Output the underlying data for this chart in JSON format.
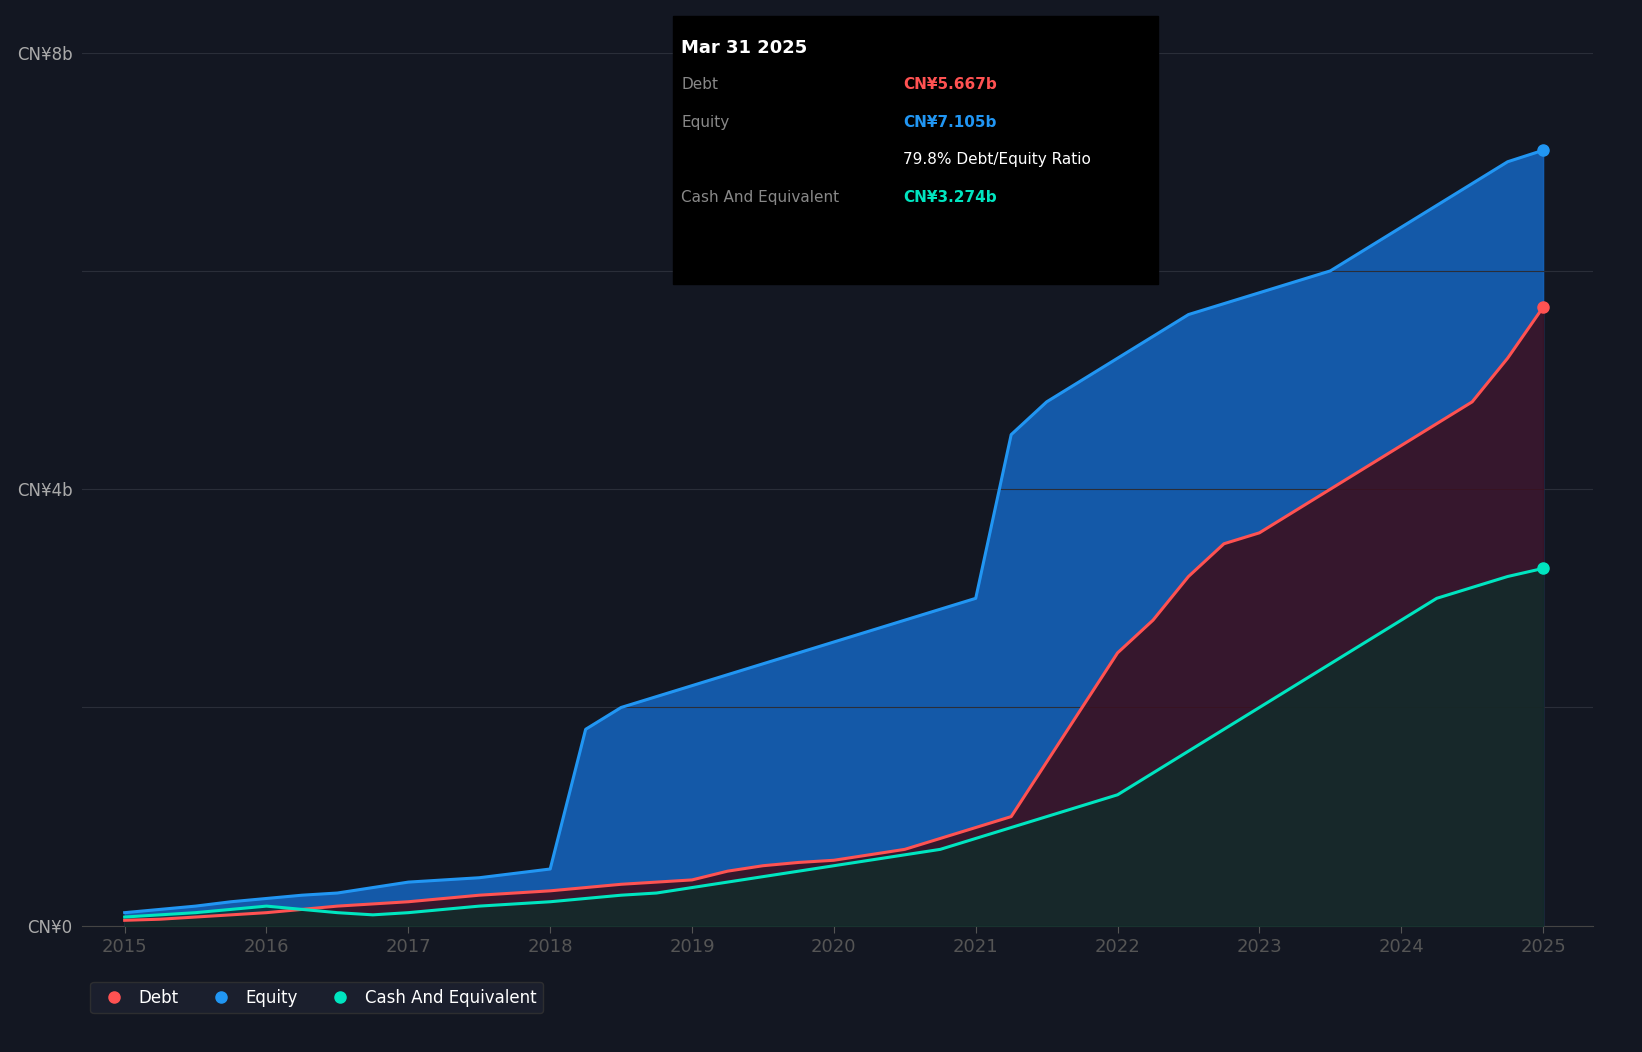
{
  "background_color": "#131722",
  "plot_bg_color": "#131722",
  "grid_color": "#2a2e39",
  "line_equity_color": "#2196F3",
  "line_debt_color": "#FF5252",
  "line_cash_color": "#00E5C0",
  "fill_equity_color": "#1565C0",
  "fill_debt_color": "#3a1020",
  "fill_cash_color": "#0d2e2a",
  "ytick_labels": [
    "CN¥0",
    "",
    "CN¥4b",
    "",
    "CN¥8b"
  ],
  "xlabel_years": [
    "2015",
    "2016",
    "2017",
    "2018",
    "2019",
    "2020",
    "2021",
    "2022",
    "2023",
    "2024",
    "2025"
  ],
  "tooltip": {
    "date": "Mar 31 2025",
    "debt_label": "Debt",
    "debt_value": "CN¥5.667b",
    "equity_label": "Equity",
    "equity_value": "CN¥7.105b",
    "ratio_label": "79.8% Debt/Equity Ratio",
    "cash_label": "Cash And Equivalent",
    "cash_value": "CN¥3.274b",
    "debt_color": "#FF5252",
    "equity_color": "#2196F3",
    "cash_color": "#00E5C0",
    "bg_color": "#000000",
    "text_color": "#ffffff",
    "gray_color": "#888888"
  },
  "times": [
    2015.0,
    2015.25,
    2015.5,
    2015.75,
    2016.0,
    2016.25,
    2016.5,
    2016.75,
    2017.0,
    2017.25,
    2017.5,
    2017.75,
    2018.0,
    2018.25,
    2018.5,
    2018.75,
    2019.0,
    2019.25,
    2019.5,
    2019.75,
    2020.0,
    2020.25,
    2020.5,
    2020.75,
    2021.0,
    2021.25,
    2021.5,
    2021.75,
    2022.0,
    2022.25,
    2022.5,
    2022.75,
    2023.0,
    2023.25,
    2023.5,
    2023.75,
    2024.0,
    2024.25,
    2024.5,
    2024.75,
    2025.0
  ],
  "equity": [
    120000000,
    150000000,
    180000000,
    220000000,
    250000000,
    280000000,
    300000000,
    350000000,
    400000000,
    420000000,
    440000000,
    480000000,
    520000000,
    1800000000,
    2000000000,
    2100000000,
    2200000000,
    2300000000,
    2400000000,
    2500000000,
    2600000000,
    2700000000,
    2800000000,
    2900000000,
    3000000000,
    4500000000,
    4800000000,
    5000000000,
    5200000000,
    5400000000,
    5600000000,
    5700000000,
    5800000000,
    5900000000,
    6000000000,
    6200000000,
    6400000000,
    6600000000,
    6800000000,
    7000000000,
    7105000000
  ],
  "debt": [
    50000000,
    60000000,
    80000000,
    100000000,
    120000000,
    150000000,
    180000000,
    200000000,
    220000000,
    250000000,
    280000000,
    300000000,
    320000000,
    350000000,
    380000000,
    400000000,
    420000000,
    500000000,
    550000000,
    580000000,
    600000000,
    650000000,
    700000000,
    800000000,
    900000000,
    1000000000,
    1500000000,
    2000000000,
    2500000000,
    2800000000,
    3200000000,
    3500000000,
    3600000000,
    3800000000,
    4000000000,
    4200000000,
    4400000000,
    4600000000,
    4800000000,
    5200000000,
    5667000000
  ],
  "cash": [
    80000000,
    100000000,
    120000000,
    150000000,
    180000000,
    150000000,
    120000000,
    100000000,
    120000000,
    150000000,
    180000000,
    200000000,
    220000000,
    250000000,
    280000000,
    300000000,
    350000000,
    400000000,
    450000000,
    500000000,
    550000000,
    600000000,
    650000000,
    700000000,
    800000000,
    900000000,
    1000000000,
    1100000000,
    1200000000,
    1400000000,
    1600000000,
    1800000000,
    2000000000,
    2200000000,
    2400000000,
    2600000000,
    2800000000,
    3000000000,
    3100000000,
    3200000000,
    3274000000
  ]
}
